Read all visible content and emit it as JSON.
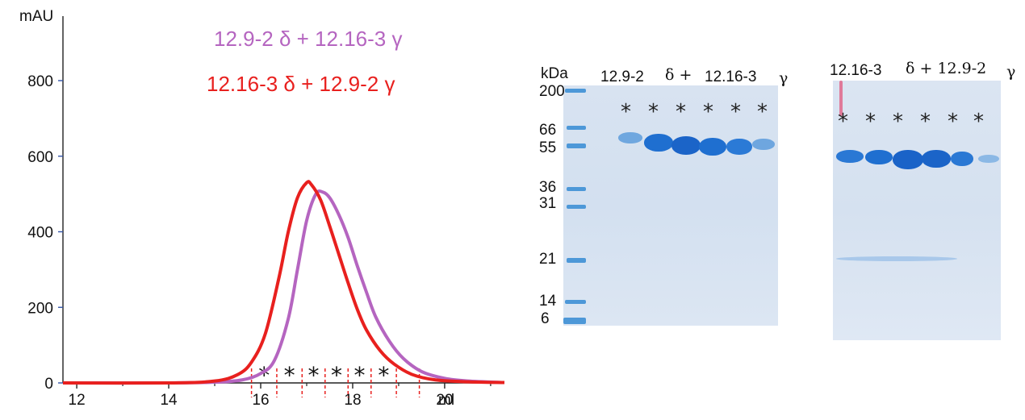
{
  "chart_data": {
    "type": "line",
    "ylabel": "mAU",
    "xlabel": "ml",
    "xlim": [
      11.7,
      21.3
    ],
    "ylim": [
      0,
      900
    ],
    "x_ticks": [
      12,
      14,
      16,
      18,
      20
    ],
    "x_tick_labels": [
      "12",
      "14",
      "16",
      "18",
      "20"
    ],
    "y_ticks": [
      0,
      200,
      400,
      600,
      800
    ],
    "y_tick_labels": [
      "0",
      "200",
      "400",
      "600",
      "800"
    ],
    "series": [
      {
        "name": "12.9-2 δ + 12.16-3 γ",
        "color": "#b565c0",
        "x": [
          11.7,
          14.0,
          15.0,
          15.6,
          16.0,
          16.3,
          16.6,
          16.8,
          17.0,
          17.2,
          17.35,
          17.5,
          17.7,
          17.9,
          18.1,
          18.3,
          18.5,
          18.8,
          19.1,
          19.5,
          20.0,
          20.5,
          21.3
        ],
        "y": [
          0,
          0,
          2,
          8,
          25,
          60,
          170,
          300,
          430,
          500,
          505,
          490,
          445,
          385,
          310,
          240,
          175,
          110,
          65,
          30,
          12,
          5,
          1
        ]
      },
      {
        "name": "12.16-3 δ + 12.9-2 γ",
        "color": "#e8201e",
        "x": [
          11.7,
          14.0,
          15.0,
          15.5,
          15.8,
          16.1,
          16.4,
          16.6,
          16.8,
          17.0,
          17.1,
          17.3,
          17.5,
          17.7,
          17.9,
          18.1,
          18.3,
          18.6,
          18.9,
          19.3,
          19.8,
          20.5,
          21.3
        ],
        "y": [
          0,
          0,
          5,
          22,
          55,
          130,
          280,
          400,
          490,
          530,
          525,
          485,
          415,
          340,
          265,
          195,
          140,
          85,
          50,
          22,
          8,
          3,
          1
        ]
      }
    ],
    "fraction_boundaries_ml": [
      15.8,
      16.35,
      16.9,
      17.4,
      17.9,
      18.4,
      18.95,
      19.45
    ],
    "fraction_markers": [
      "*",
      "*",
      "*",
      "*",
      "*",
      "*"
    ],
    "legend_placement": "top-center",
    "grid": false
  },
  "gel_left": {
    "unit_label": "kDa",
    "title_parts": [
      "12.9-2",
      "δ +",
      "12.16-3",
      "γ"
    ],
    "markers": [
      "200",
      "66",
      "55",
      "36",
      "31",
      "21",
      "14",
      "6"
    ],
    "lane_markers": [
      "*",
      "*",
      "*",
      "*",
      "*",
      "*"
    ]
  },
  "gel_right": {
    "title_parts": [
      "12.16-3",
      "δ + 12.9-2",
      "γ"
    ],
    "lane_markers": [
      "*",
      "*",
      "*",
      "*",
      "*",
      "*"
    ]
  }
}
